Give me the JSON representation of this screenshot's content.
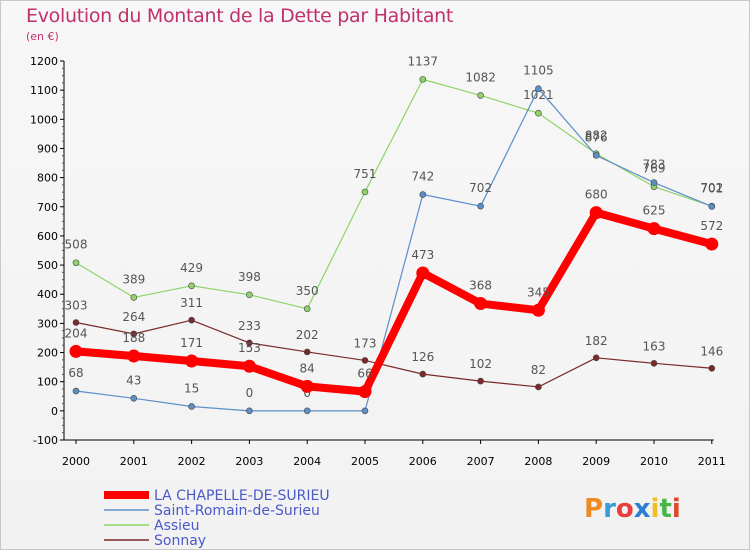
{
  "header": {
    "title": "Evolution du Montant de la Dette par Habitant",
    "unit": "(en €)"
  },
  "logo": {
    "text": "Proxiti"
  },
  "chart_data": {
    "type": "line",
    "title": "Evolution du Montant de la Dette par Habitant",
    "subtitle": "(en €)",
    "xlabel": "",
    "ylabel": "",
    "x": [
      "2000",
      "2001",
      "2002",
      "2003",
      "2004",
      "2005",
      "2006",
      "2007",
      "2008",
      "2009",
      "2010",
      "2011"
    ],
    "ylim": [
      -100,
      1200
    ],
    "yticks": [
      "-100",
      "0",
      "100",
      "200",
      "300",
      "400",
      "500",
      "600",
      "700",
      "800",
      "900",
      "1000",
      "1100",
      "1200"
    ],
    "grid": false,
    "legend_position": "bottom-left",
    "series": [
      {
        "name": "LA CHAPELLE-DE-SURIEU",
        "color": "#ff0000",
        "emphasis": true,
        "values": [
          204,
          188,
          171,
          153,
          84,
          66,
          473,
          368,
          345,
          680,
          625,
          572
        ]
      },
      {
        "name": "Saint-Romain-de-Surieu",
        "color": "#5b8fc8",
        "values": [
          68,
          43,
          15,
          0,
          0,
          0,
          742,
          702,
          1105,
          876,
          783,
          701
        ]
      },
      {
        "name": "Assieu",
        "color": "#8fd468",
        "values": [
          508,
          389,
          429,
          398,
          350,
          751,
          1137,
          1082,
          1021,
          882,
          769,
          702
        ]
      },
      {
        "name": "Sonnay",
        "color": "#7a2a2a",
        "values": [
          303,
          264,
          311,
          233,
          202,
          173,
          126,
          102,
          82,
          182,
          163,
          146
        ]
      }
    ]
  }
}
